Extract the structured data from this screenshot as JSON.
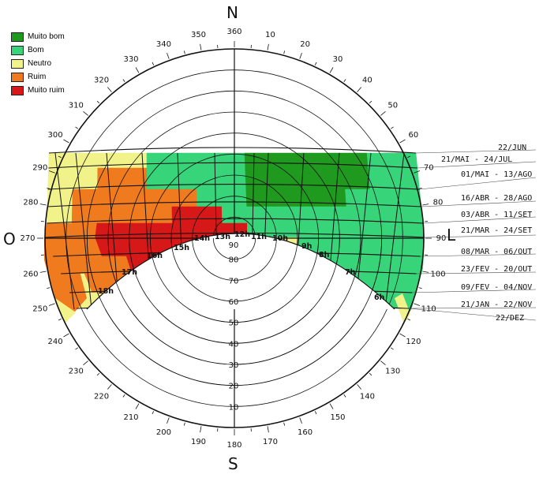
{
  "compass": {
    "north": "N",
    "south": "S",
    "west": "O",
    "east": "L"
  },
  "legend": [
    {
      "label": "Muito bom",
      "color": "#1f9a1f"
    },
    {
      "label": "Bom",
      "color": "#38d47a"
    },
    {
      "label": "Neutro",
      "color": "#f2f28a"
    },
    {
      "label": "Ruim",
      "color": "#f07a1e"
    },
    {
      "label": "Muito ruim",
      "color": "#d71818"
    }
  ],
  "azimuth_labels": [
    "360",
    "10",
    "20",
    "30",
    "40",
    "50",
    "60",
    "70",
    "80",
    "90",
    "100",
    "110",
    "120",
    "130",
    "140",
    "150",
    "160",
    "170",
    "180",
    "190",
    "200",
    "210",
    "220",
    "230",
    "240",
    "250",
    "260",
    "270",
    "280",
    "290",
    "300",
    "310",
    "320",
    "330",
    "340",
    "350"
  ],
  "altitude_labels": [
    "90",
    "80",
    "70",
    "60",
    "50",
    "40",
    "30",
    "20",
    "10"
  ],
  "hour_labels": [
    "6h",
    "7h",
    "8h",
    "9h",
    "10h",
    "11h",
    "12h",
    "13h",
    "14h",
    "15h",
    "16h",
    "17h",
    "18h"
  ],
  "date_labels": [
    "22/JUN",
    "21/MAI - 24/JUL",
    "01/MAI - 13/AGO",
    "16/ABR - 28/AGO",
    "03/ABR - 11/SET",
    "21/MAR - 24/SET",
    "08/MAR - 06/OUT",
    "23/FEV - 20/OUT",
    "09/FEV - 04/NOV",
    "21/JAN - 22/NOV",
    "22/DEZ"
  ]
}
